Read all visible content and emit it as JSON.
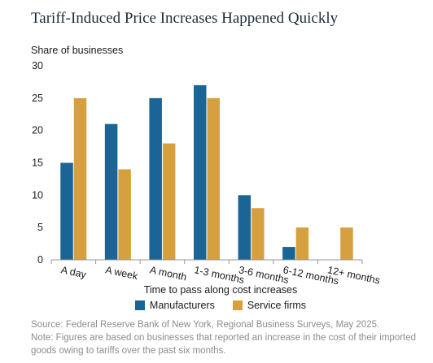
{
  "title": "Tariff-Induced Price Increases Happened Quickly",
  "colors": {
    "manufacturers": "#1a6496",
    "service_firms": "#d6a03f",
    "axis": "#9a9a9a",
    "grid": "#c8c8c8"
  },
  "chart_data": {
    "type": "bar",
    "ylabel": "Share of businesses",
    "xlabel": "Time to pass along cost increases",
    "ylim": [
      0,
      30
    ],
    "yticks": [
      0,
      5,
      10,
      15,
      20,
      25,
      30
    ],
    "categories": [
      "A day",
      "A week",
      "A month",
      "1-3 months",
      "3-6 months",
      "6-12 months",
      "12+ months"
    ],
    "series": [
      {
        "name": "Manufacturers",
        "values": [
          15,
          21,
          25,
          27,
          10,
          2,
          0
        ]
      },
      {
        "name": "Service firms",
        "values": [
          25,
          14,
          18,
          25,
          8,
          5,
          5
        ]
      }
    ],
    "legend": "bottom-center",
    "grid": false
  },
  "source_note": {
    "line1": "Source: Federal Reserve Bank of New York, Regional Business Surveys, May 2025.",
    "line2": "Note: Figures are based on businesses that reported an increase in the cost of their imported",
    "line3": "goods owing to tariffs over the past six months."
  }
}
